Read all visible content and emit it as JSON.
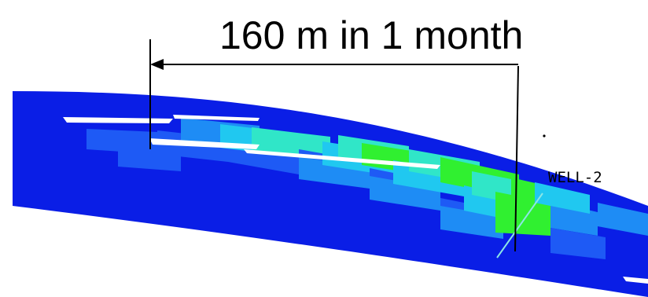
{
  "headline": "160 m in 1 month",
  "well_label": "WELL-2",
  "colors": {
    "formation": "#0a1ee6",
    "mid_blue": "#1e5af5",
    "light_blue": "#1e8cf5",
    "cyan": "#20c8f0",
    "aqua": "#30e6c8",
    "green": "#30f030",
    "arrow": "#000000",
    "well": "#8ce6e6"
  }
}
